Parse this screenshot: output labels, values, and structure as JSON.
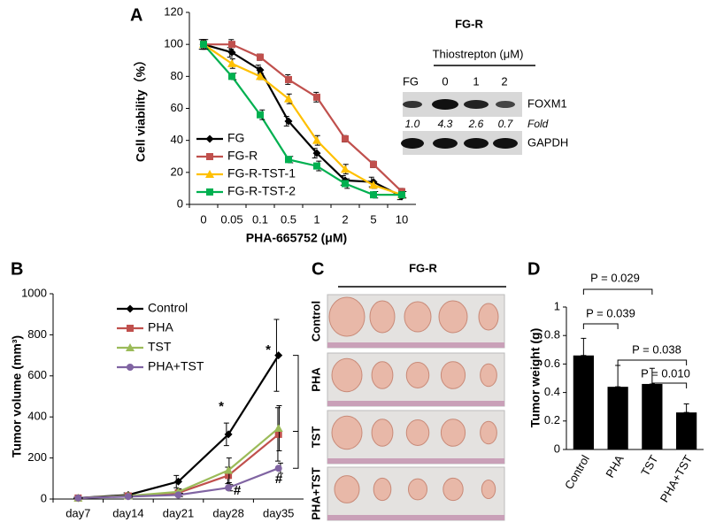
{
  "chart_data": [
    {
      "type": "line",
      "panel": "A",
      "xlabel": "PHA-665752 (μM)",
      "ylabel": "Cell viability（%）",
      "categories": [
        "0",
        "0.05",
        "0.1",
        "0.5",
        "1",
        "2",
        "5",
        "10"
      ],
      "ylim": [
        0,
        120
      ],
      "yticks": [
        0,
        20,
        40,
        60,
        80,
        100,
        120
      ],
      "series": [
        {
          "name": "FG",
          "color": "#000000",
          "marker": "diamond",
          "values": [
            100,
            95,
            84,
            52,
            32,
            15,
            14,
            5
          ],
          "errors": [
            3,
            3,
            3,
            3,
            3,
            3,
            3,
            2
          ]
        },
        {
          "name": "FG-R",
          "color": "#c0504d",
          "marker": "square",
          "values": [
            100,
            100,
            92,
            78,
            67,
            41,
            25,
            8
          ],
          "errors": [
            3,
            3,
            2,
            3,
            3,
            2,
            2,
            2
          ]
        },
        {
          "name": "FG-R-TST-1",
          "color": "#ffc000",
          "marker": "triangle",
          "values": [
            100,
            88,
            80,
            66,
            40,
            22,
            12,
            6
          ],
          "errors": [
            3,
            3,
            2,
            3,
            3,
            3,
            2,
            2
          ]
        },
        {
          "name": "FG-R-TST-2",
          "color": "#00b050",
          "marker": "square",
          "values": [
            100,
            80,
            56,
            28,
            24,
            13,
            6,
            6
          ],
          "errors": [
            3,
            2,
            3,
            2,
            3,
            3,
            2,
            2
          ]
        }
      ]
    },
    {
      "type": "line",
      "panel": "B",
      "ylabel": "Tumor volume (mm³)",
      "categories": [
        "day7",
        "day14",
        "day21",
        "day28",
        "day35"
      ],
      "ylim": [
        0,
        1000
      ],
      "yticks": [
        0,
        200,
        400,
        600,
        800,
        1000
      ],
      "series": [
        {
          "name": "Control",
          "color": "#000000",
          "marker": "diamond",
          "values": [
            5,
            20,
            85,
            315,
            700
          ],
          "errors": [
            3,
            10,
            30,
            55,
            175
          ]
        },
        {
          "name": "PHA",
          "color": "#c0504d",
          "marker": "square",
          "values": [
            5,
            15,
            30,
            115,
            315
          ],
          "errors": [
            3,
            5,
            15,
            40,
            130
          ]
        },
        {
          "name": "TST",
          "color": "#9bbb59",
          "marker": "triangle",
          "values": [
            5,
            15,
            35,
            140,
            345
          ],
          "errors": [
            3,
            5,
            15,
            60,
            110
          ]
        },
        {
          "name": "PHA+TST",
          "color": "#8064a2",
          "marker": "circle",
          "values": [
            5,
            12,
            20,
            55,
            150
          ],
          "errors": [
            2,
            4,
            8,
            15,
            25
          ]
        }
      ],
      "annotations": [
        "*",
        "*",
        "#",
        "#"
      ]
    },
    {
      "type": "bar",
      "panel": "D",
      "ylabel": "Tumor weight (g)",
      "categories": [
        "Control",
        "PHA",
        "TST",
        "PHA+TST"
      ],
      "values": [
        0.66,
        0.44,
        0.46,
        0.26
      ],
      "errors": [
        0.12,
        0.15,
        0.11,
        0.06
      ],
      "color": "#000000",
      "ylim": [
        0,
        1
      ],
      "yticks": [
        0,
        0.2,
        0.4,
        0.6,
        0.8,
        1
      ],
      "annotations": [
        "P = 0.039",
        "P = 0.029",
        "P = 0.038",
        "P = 0.010"
      ]
    }
  ],
  "blot": {
    "title": "FG-R",
    "treatment": "Thiostrepton (μM)",
    "lanes": [
      "FG",
      "0",
      "1",
      "2"
    ],
    "proteins": [
      "FOXM1",
      "GAPDH"
    ],
    "fold": [
      "1.0",
      "4.3",
      "2.6",
      "0.7"
    ],
    "fold_label": "Fold"
  },
  "photos": {
    "panel": "C",
    "title": "FG-R",
    "rows": [
      "Control",
      "PHA",
      "TST",
      "PHA+TST"
    ]
  }
}
